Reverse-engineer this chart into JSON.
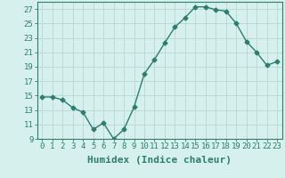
{
  "x": [
    0,
    1,
    2,
    3,
    4,
    5,
    6,
    7,
    8,
    9,
    10,
    11,
    12,
    13,
    14,
    15,
    16,
    17,
    18,
    19,
    20,
    21,
    22,
    23
  ],
  "y": [
    14.8,
    14.8,
    14.4,
    13.3,
    12.7,
    10.3,
    11.2,
    9.0,
    10.3,
    13.4,
    18.0,
    20.0,
    22.3,
    24.5,
    25.8,
    27.3,
    27.3,
    26.9,
    26.7,
    25.0,
    22.5,
    21.0,
    19.2,
    19.7
  ],
  "title": "",
  "xlabel": "Humidex (Indice chaleur)",
  "ylabel": "",
  "xlim": [
    -0.5,
    23.5
  ],
  "ylim": [
    9,
    28
  ],
  "yticks": [
    9,
    11,
    13,
    15,
    17,
    19,
    21,
    23,
    25,
    27
  ],
  "xticks": [
    0,
    1,
    2,
    3,
    4,
    5,
    6,
    7,
    8,
    9,
    10,
    11,
    12,
    13,
    14,
    15,
    16,
    17,
    18,
    19,
    20,
    21,
    22,
    23
  ],
  "line_color": "#2e7d6e",
  "marker": "D",
  "marker_size": 2.5,
  "bg_color": "#d6f0ee",
  "grid_color": "#b8d8d4",
  "axes_color": "#2e7d6e",
  "tick_label_fontsize": 6.5,
  "xlabel_fontsize": 8,
  "line_width": 1.0
}
